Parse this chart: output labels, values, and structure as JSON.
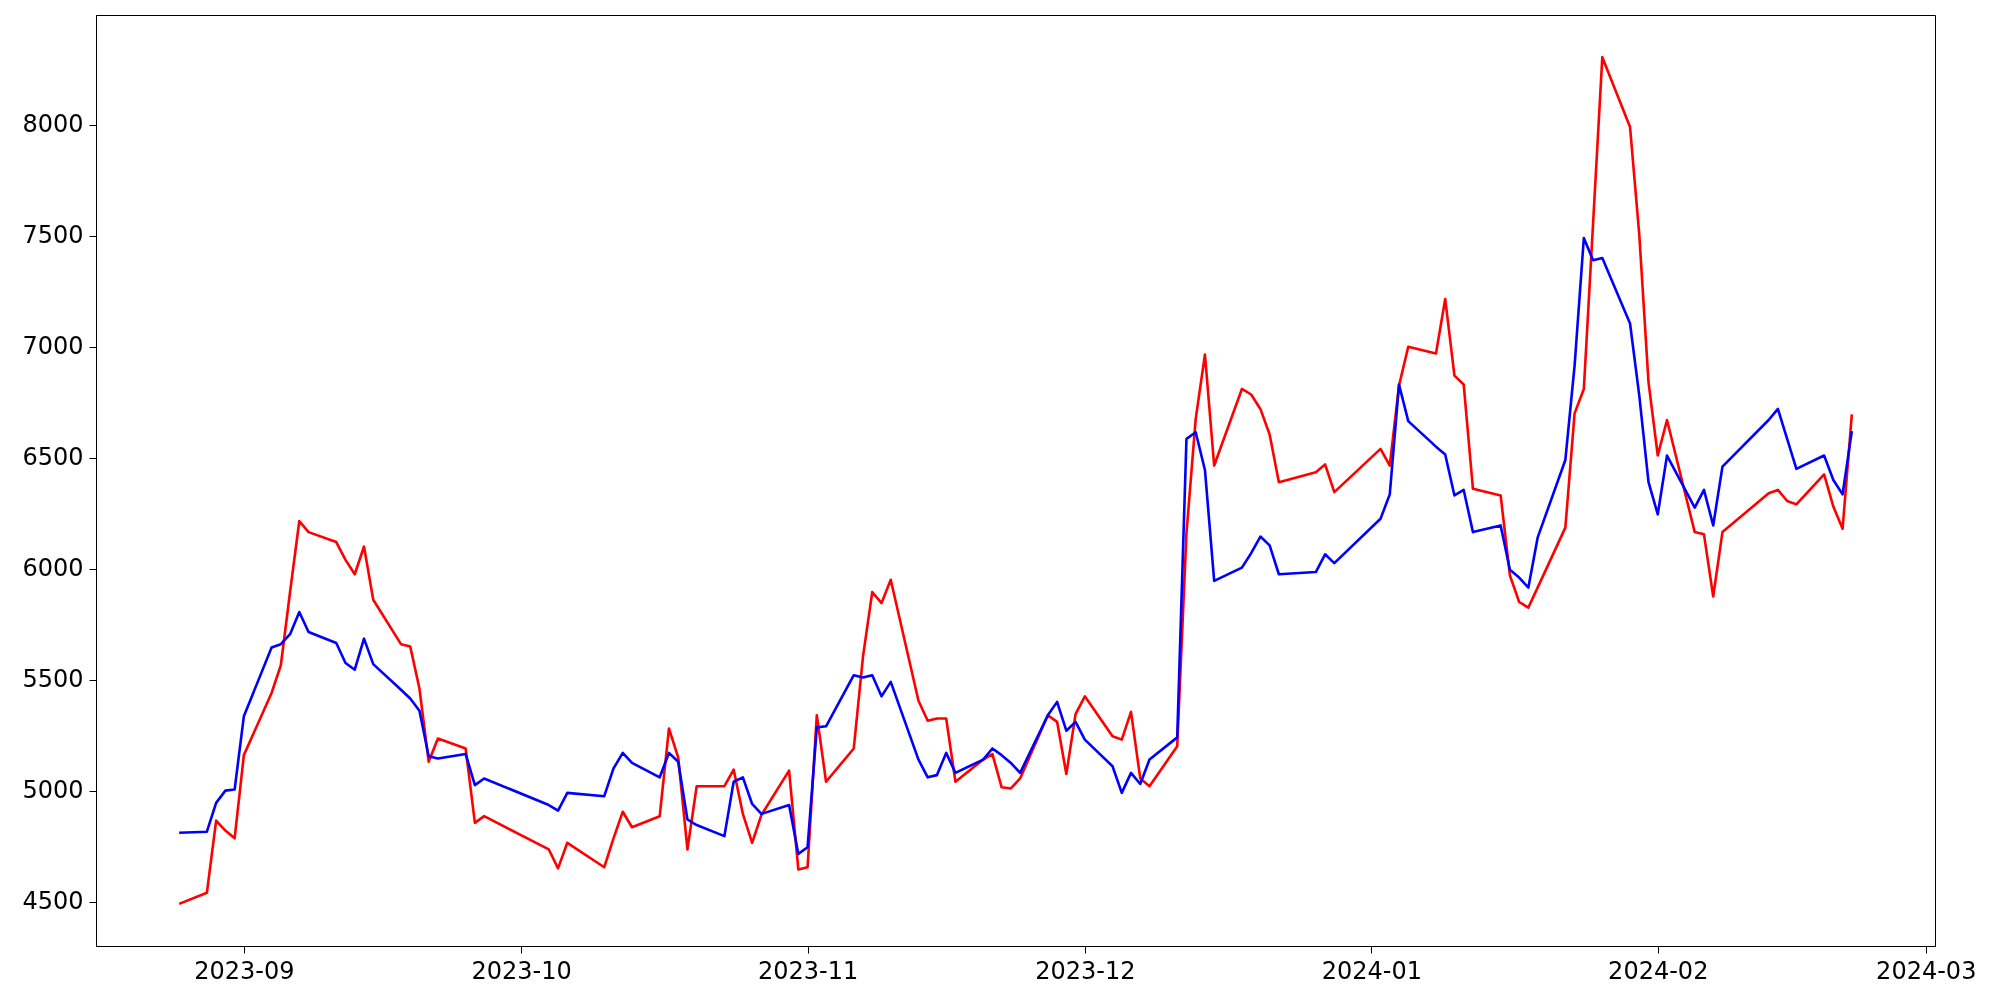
{
  "chart_data": {
    "type": "line",
    "x": [
      "2023-08-25",
      "2023-08-28",
      "2023-08-29",
      "2023-08-30",
      "2023-08-31",
      "2023-09-01",
      "2023-09-04",
      "2023-09-05",
      "2023-09-06",
      "2023-09-07",
      "2023-09-08",
      "2023-09-11",
      "2023-09-12",
      "2023-09-13",
      "2023-09-14",
      "2023-09-15",
      "2023-09-18",
      "2023-09-19",
      "2023-09-20",
      "2023-09-21",
      "2023-09-22",
      "2023-09-25",
      "2023-09-26",
      "2023-09-27",
      "2023-10-04",
      "2023-10-05",
      "2023-10-06",
      "2023-10-10",
      "2023-10-11",
      "2023-10-12",
      "2023-10-13",
      "2023-10-16",
      "2023-10-17",
      "2023-10-18",
      "2023-10-19",
      "2023-10-20",
      "2023-10-23",
      "2023-10-24",
      "2023-10-25",
      "2023-10-26",
      "2023-10-27",
      "2023-10-30",
      "2023-10-31",
      "2023-11-01",
      "2023-11-02",
      "2023-11-03",
      "2023-11-06",
      "2023-11-07",
      "2023-11-08",
      "2023-11-09",
      "2023-11-10",
      "2023-11-13",
      "2023-11-14",
      "2023-11-15",
      "2023-11-16",
      "2023-11-17",
      "2023-11-20",
      "2023-11-21",
      "2023-11-22",
      "2023-11-23",
      "2023-11-24",
      "2023-11-27",
      "2023-11-28",
      "2023-11-29",
      "2023-11-30",
      "2023-12-01",
      "2023-12-04",
      "2023-12-05",
      "2023-12-06",
      "2023-12-07",
      "2023-12-08",
      "2023-12-11",
      "2023-12-12",
      "2023-12-13",
      "2023-12-14",
      "2023-12-15",
      "2023-12-18",
      "2023-12-19",
      "2023-12-20",
      "2023-12-21",
      "2023-12-22",
      "2023-12-26",
      "2023-12-27",
      "2023-12-28",
      "2024-01-02",
      "2024-01-03",
      "2024-01-04",
      "2024-01-05",
      "2024-01-08",
      "2024-01-09",
      "2024-01-10",
      "2024-01-11",
      "2024-01-12",
      "2024-01-15",
      "2024-01-16",
      "2024-01-17",
      "2024-01-18",
      "2024-01-19",
      "2024-01-22",
      "2024-01-23",
      "2024-01-24",
      "2024-01-25",
      "2024-01-26",
      "2024-01-29",
      "2024-01-30",
      "2024-01-31",
      "2024-02-01",
      "2024-02-02",
      "2024-02-05",
      "2024-02-06",
      "2024-02-07",
      "2024-02-08",
      "2024-02-13",
      "2024-02-14",
      "2024-02-15",
      "2024-02-16",
      "2024-02-19",
      "2024-02-20",
      "2024-02-21",
      "2024-02-22"
    ],
    "series": [
      {
        "color": "#ff0000",
        "values": [
          4490,
          4540,
          4865,
          4820,
          4785,
          5160,
          5440,
          5565,
          5895,
          6215,
          6165,
          6120,
          6040,
          5975,
          6100,
          5860,
          5660,
          5650,
          5460,
          5130,
          5235,
          5190,
          4855,
          4885,
          4735,
          4650,
          4765,
          4655,
          4785,
          4905,
          4835,
          4885,
          5280,
          5150,
          4735,
          5020,
          5020,
          5095,
          4895,
          4765,
          4890,
          5090,
          4645,
          4655,
          5340,
          5040,
          5190,
          5605,
          5895,
          5845,
          5950,
          5405,
          5315,
          5325,
          5325,
          5040,
          5140,
          5165,
          5015,
          5010,
          5055,
          5340,
          5310,
          5075,
          5345,
          5425,
          5245,
          5230,
          5355,
          5055,
          5020,
          5200,
          6160,
          6675,
          6965,
          6465,
          6810,
          6785,
          6720,
          6605,
          6390,
          6435,
          6470,
          6345,
          6540,
          6465,
          6825,
          7000,
          6970,
          7215,
          6870,
          6830,
          6360,
          6330,
          5970,
          5850,
          5825,
          5915,
          6185,
          6700,
          6810,
          7555,
          8305,
          7990,
          7505,
          6840,
          6510,
          6670,
          6165,
          6155,
          5875,
          6165,
          6340,
          6355,
          6305,
          6290,
          6425,
          6280,
          6180,
          6695
        ]
      },
      {
        "color": "#0000ff",
        "values": [
          4810,
          4815,
          4945,
          5000,
          5005,
          5335,
          5645,
          5660,
          5705,
          5805,
          5715,
          5665,
          5575,
          5545,
          5685,
          5570,
          5455,
          5415,
          5360,
          5155,
          5145,
          5165,
          5025,
          5055,
          4935,
          4910,
          4990,
          4975,
          5100,
          5170,
          5125,
          5060,
          5170,
          5130,
          4870,
          4845,
          4795,
          5040,
          5060,
          4940,
          4895,
          4935,
          4715,
          4745,
          5285,
          5290,
          5520,
          5510,
          5520,
          5425,
          5490,
          5140,
          5060,
          5070,
          5170,
          5080,
          5140,
          5190,
          5160,
          5125,
          5080,
          5340,
          5400,
          5270,
          5310,
          5230,
          5110,
          4990,
          5080,
          5030,
          5140,
          5240,
          6585,
          6615,
          6445,
          5945,
          6005,
          6070,
          6145,
          6105,
          5975,
          5985,
          6065,
          6025,
          6225,
          6335,
          6830,
          6665,
          6550,
          6515,
          6330,
          6355,
          6165,
          6195,
          5995,
          5960,
          5915,
          6140,
          6490,
          6915,
          7490,
          7390,
          7400,
          7105,
          6780,
          6390,
          6245,
          6510,
          6275,
          6355,
          6195,
          6460,
          6670,
          6720,
          6585,
          6450,
          6510,
          6400,
          6335,
          6620
        ]
      }
    ],
    "xlim": [
      "2023-08-16",
      "2024-03-02"
    ],
    "xticks": [
      {
        "value": "2023-09-01",
        "label": "2023-09"
      },
      {
        "value": "2023-10-01",
        "label": "2023-10"
      },
      {
        "value": "2023-11-01",
        "label": "2023-11"
      },
      {
        "value": "2023-12-01",
        "label": "2023-12"
      },
      {
        "value": "2024-01-01",
        "label": "2024-01"
      },
      {
        "value": "2024-02-01",
        "label": "2024-02"
      },
      {
        "value": "2024-03-01",
        "label": "2024-03"
      }
    ],
    "ylim": [
      4300,
      8495
    ],
    "yticks": [
      4500,
      5000,
      5500,
      6000,
      6500,
      7000,
      7500,
      8000
    ]
  }
}
